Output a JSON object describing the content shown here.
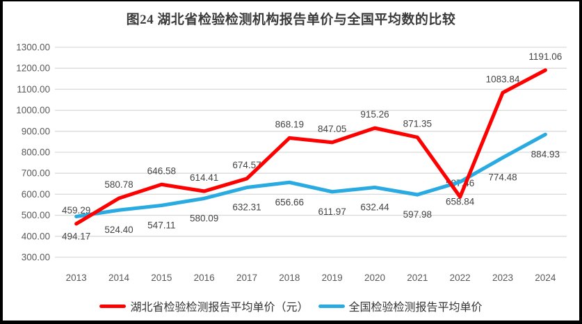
{
  "title": "图24 湖北省检验检测机构报告单价与全国平均数的比较",
  "colors": {
    "hubei_line": "#FF0000",
    "national_line": "#29ABE2",
    "gridline": "#D9D9D9",
    "axis_text": "#595959",
    "data_label_text": "#444444",
    "title_text": "#3A3A3A",
    "frame_border": "#000000",
    "background": "#FFFFFF"
  },
  "legend": [
    {
      "label": "湖北省检验检测报告平均单价（元）",
      "color": "#FF0000"
    },
    {
      "label": "全国检验检测报告平均单价",
      "color": "#29ABE2"
    }
  ],
  "chart_data": {
    "type": "line",
    "title": "图24 湖北省检验检测机构报告单价与全国平均数的比较",
    "categories": [
      "2013",
      "2014",
      "2015",
      "2016",
      "2017",
      "2018",
      "2019",
      "2020",
      "2021",
      "2022",
      "2023",
      "2024"
    ],
    "series": [
      {
        "name": "湖北省检验检测报告平均单价（元）",
        "color": "#FF0000",
        "label_position": "above",
        "values": [
          459.29,
          580.78,
          646.58,
          614.41,
          674.57,
          868.19,
          847.05,
          915.26,
          871.35,
          587.46,
          1083.84,
          1191.06
        ],
        "labels": [
          "459.29",
          "580.78",
          "646.58",
          "614.41",
          "674.57",
          "868.19",
          "847.05",
          "915.26",
          "871.35",
          "587.46",
          "1083.84",
          "1191.06"
        ]
      },
      {
        "name": "全国检验检测报告平均单价",
        "color": "#29ABE2",
        "label_position": "below",
        "values": [
          494.17,
          524.4,
          547.11,
          580.09,
          632.31,
          656.66,
          611.97,
          632.44,
          597.98,
          658.84,
          774.48,
          884.93
        ],
        "labels": [
          "494.17",
          "524.40",
          "547.11",
          "580.09",
          "632.31",
          "656.66",
          "611.97",
          "632.44",
          "597.98",
          "658.84",
          "774.48",
          "884.93"
        ]
      }
    ],
    "ylim": [
      300,
      1300
    ],
    "yticks": [
      {
        "v": 1300,
        "label": "1300.00"
      },
      {
        "v": 1200,
        "label": "1200.00"
      },
      {
        "v": 1100,
        "label": "1100.00"
      },
      {
        "v": 1000,
        "label": "1000.00"
      },
      {
        "v": 900,
        "label": "900.00"
      },
      {
        "v": 800,
        "label": "800.00"
      },
      {
        "v": 700,
        "label": "700.00"
      },
      {
        "v": 600,
        "label": "600.00"
      },
      {
        "v": 500,
        "label": "500.00"
      },
      {
        "v": 400,
        "label": "400.00"
      },
      {
        "v": 300,
        "label": "300.00"
      }
    ],
    "grid": true,
    "legend_position": "bottom"
  }
}
